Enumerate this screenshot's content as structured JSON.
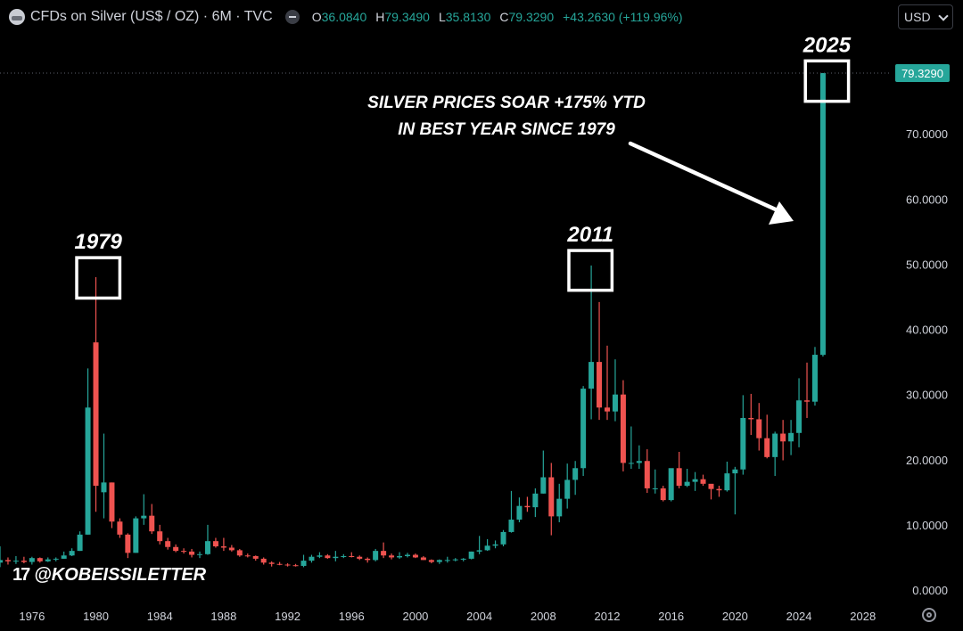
{
  "header": {
    "title": "CFDs on Silver (US$ / OZ) · 6M · TVC",
    "ohlc": [
      {
        "k": "O",
        "v": "36.0840"
      },
      {
        "k": "H",
        "v": "79.3490"
      },
      {
        "k": "L",
        "v": "35.8130"
      },
      {
        "k": "C",
        "v": "79.3290"
      }
    ],
    "change": "+43.2630 (+119.96%)"
  },
  "currency_select": "USD",
  "watermark": "@KOBEISSILETTER",
  "watermark_logo": "17",
  "colors": {
    "up": "#26a69a",
    "down": "#ef5350",
    "background": "#000000",
    "axis_text": "#d1d4dc",
    "price_tag": "#26a69a"
  },
  "chart_data": {
    "type": "candlestick",
    "title": "",
    "xlabel": "",
    "ylabel": "",
    "x_range": [
      1974.0,
      2029.8
    ],
    "ylim": [
      0,
      79.329
    ],
    "y_ticks": [
      0,
      10,
      20,
      30,
      40,
      50,
      60,
      70
    ],
    "y_tick_labels": [
      "0.0000",
      "10.0000",
      "20.0000",
      "30.0000",
      "40.0000",
      "50.0000",
      "60.0000",
      "70.0000"
    ],
    "x_ticks": [
      1976,
      1980,
      1984,
      1988,
      1992,
      1996,
      2000,
      2004,
      2008,
      2012,
      2016,
      2020,
      2024,
      2028
    ],
    "last_price_label": "79.3290",
    "last_price": 79.329,
    "candles": [
      {
        "t": 1974.0,
        "o": 4.2,
        "h": 6.7,
        "l": 3.5,
        "c": 4.6
      },
      {
        "t": 1974.5,
        "o": 4.6,
        "h": 5.0,
        "l": 3.9,
        "c": 4.4
      },
      {
        "t": 1975.0,
        "o": 4.4,
        "h": 5.2,
        "l": 4.0,
        "c": 4.5
      },
      {
        "t": 1975.5,
        "o": 4.5,
        "h": 5.1,
        "l": 4.1,
        "c": 4.3
      },
      {
        "t": 1976.0,
        "o": 4.3,
        "h": 5.1,
        "l": 3.9,
        "c": 4.9
      },
      {
        "t": 1976.5,
        "o": 4.9,
        "h": 5.0,
        "l": 4.2,
        "c": 4.4
      },
      {
        "t": 1977.0,
        "o": 4.4,
        "h": 5.0,
        "l": 4.3,
        "c": 4.7
      },
      {
        "t": 1977.5,
        "o": 4.7,
        "h": 5.0,
        "l": 4.4,
        "c": 4.8
      },
      {
        "t": 1978.0,
        "o": 4.8,
        "h": 5.9,
        "l": 4.8,
        "c": 5.3
      },
      {
        "t": 1978.5,
        "o": 5.3,
        "h": 6.4,
        "l": 5.2,
        "c": 6.0
      },
      {
        "t": 1979.0,
        "o": 6.0,
        "h": 9.0,
        "l": 6.0,
        "c": 8.5
      },
      {
        "t": 1979.5,
        "o": 8.5,
        "h": 34.0,
        "l": 8.5,
        "c": 28.0
      },
      {
        "t": 1980.0,
        "o": 38.0,
        "h": 48.0,
        "l": 12.0,
        "c": 16.0
      },
      {
        "t": 1980.5,
        "o": 15.0,
        "h": 24.0,
        "l": 11.0,
        "c": 16.5
      },
      {
        "t": 1981.0,
        "o": 16.5,
        "h": 16.5,
        "l": 9.5,
        "c": 10.5
      },
      {
        "t": 1981.5,
        "o": 10.5,
        "h": 11.0,
        "l": 8.0,
        "c": 8.5
      },
      {
        "t": 1982.0,
        "o": 8.5,
        "h": 8.7,
        "l": 4.9,
        "c": 5.7
      },
      {
        "t": 1982.5,
        "o": 5.7,
        "h": 11.3,
        "l": 5.7,
        "c": 11.0
      },
      {
        "t": 1983.0,
        "o": 11.0,
        "h": 14.7,
        "l": 10.0,
        "c": 11.4
      },
      {
        "t": 1983.5,
        "o": 11.4,
        "h": 13.2,
        "l": 8.6,
        "c": 9.0
      },
      {
        "t": 1984.0,
        "o": 9.0,
        "h": 10.0,
        "l": 7.0,
        "c": 7.5
      },
      {
        "t": 1984.5,
        "o": 7.5,
        "h": 8.0,
        "l": 6.2,
        "c": 6.6
      },
      {
        "t": 1985.0,
        "o": 6.6,
        "h": 7.0,
        "l": 5.8,
        "c": 6.0
      },
      {
        "t": 1985.5,
        "o": 6.0,
        "h": 6.4,
        "l": 5.6,
        "c": 5.9
      },
      {
        "t": 1986.0,
        "o": 5.9,
        "h": 6.3,
        "l": 5.0,
        "c": 5.4
      },
      {
        "t": 1986.5,
        "o": 5.4,
        "h": 5.9,
        "l": 4.9,
        "c": 5.5
      },
      {
        "t": 1987.0,
        "o": 5.5,
        "h": 10.0,
        "l": 5.4,
        "c": 7.5
      },
      {
        "t": 1987.5,
        "o": 7.5,
        "h": 8.0,
        "l": 6.5,
        "c": 6.7
      },
      {
        "t": 1988.0,
        "o": 6.7,
        "h": 8.0,
        "l": 6.0,
        "c": 6.5
      },
      {
        "t": 1988.5,
        "o": 6.5,
        "h": 6.9,
        "l": 5.9,
        "c": 6.1
      },
      {
        "t": 1989.0,
        "o": 6.1,
        "h": 6.3,
        "l": 5.1,
        "c": 5.3
      },
      {
        "t": 1989.5,
        "o": 5.3,
        "h": 5.6,
        "l": 5.0,
        "c": 5.2
      },
      {
        "t": 1990.0,
        "o": 5.2,
        "h": 5.3,
        "l": 4.5,
        "c": 4.8
      },
      {
        "t": 1990.5,
        "o": 4.8,
        "h": 5.0,
        "l": 3.9,
        "c": 4.2
      },
      {
        "t": 1991.0,
        "o": 4.2,
        "h": 4.4,
        "l": 3.6,
        "c": 4.0
      },
      {
        "t": 1991.5,
        "o": 4.0,
        "h": 4.3,
        "l": 3.8,
        "c": 3.9
      },
      {
        "t": 1992.0,
        "o": 3.9,
        "h": 4.1,
        "l": 3.6,
        "c": 3.8
      },
      {
        "t": 1992.5,
        "o": 3.8,
        "h": 4.0,
        "l": 3.6,
        "c": 3.7
      },
      {
        "t": 1993.0,
        "o": 3.7,
        "h": 5.4,
        "l": 3.5,
        "c": 4.5
      },
      {
        "t": 1993.5,
        "o": 4.5,
        "h": 5.4,
        "l": 4.2,
        "c": 5.1
      },
      {
        "t": 1994.0,
        "o": 5.1,
        "h": 5.8,
        "l": 4.9,
        "c": 5.3
      },
      {
        "t": 1994.5,
        "o": 5.3,
        "h": 5.5,
        "l": 4.8,
        "c": 4.9
      },
      {
        "t": 1995.0,
        "o": 4.9,
        "h": 6.0,
        "l": 4.4,
        "c": 5.1
      },
      {
        "t": 1995.5,
        "o": 5.1,
        "h": 5.5,
        "l": 4.9,
        "c": 5.2
      },
      {
        "t": 1996.0,
        "o": 5.2,
        "h": 5.8,
        "l": 5.0,
        "c": 5.1
      },
      {
        "t": 1996.5,
        "o": 5.1,
        "h": 5.3,
        "l": 4.6,
        "c": 4.8
      },
      {
        "t": 1997.0,
        "o": 4.8,
        "h": 5.0,
        "l": 4.2,
        "c": 4.6
      },
      {
        "t": 1997.5,
        "o": 4.6,
        "h": 6.3,
        "l": 4.4,
        "c": 6.0
      },
      {
        "t": 1998.0,
        "o": 6.0,
        "h": 7.3,
        "l": 4.9,
        "c": 5.3
      },
      {
        "t": 1998.5,
        "o": 5.3,
        "h": 5.6,
        "l": 4.7,
        "c": 5.0
      },
      {
        "t": 1999.0,
        "o": 5.0,
        "h": 5.8,
        "l": 4.8,
        "c": 5.2
      },
      {
        "t": 1999.5,
        "o": 5.2,
        "h": 5.7,
        "l": 5.0,
        "c": 5.4
      },
      {
        "t": 2000.0,
        "o": 5.4,
        "h": 5.6,
        "l": 4.9,
        "c": 5.0
      },
      {
        "t": 2000.5,
        "o": 5.0,
        "h": 5.2,
        "l": 4.6,
        "c": 4.6
      },
      {
        "t": 2001.0,
        "o": 4.6,
        "h": 4.7,
        "l": 4.1,
        "c": 4.3
      },
      {
        "t": 2001.5,
        "o": 4.3,
        "h": 4.7,
        "l": 4.0,
        "c": 4.6
      },
      {
        "t": 2002.0,
        "o": 4.6,
        "h": 5.1,
        "l": 4.2,
        "c": 4.6
      },
      {
        "t": 2002.5,
        "o": 4.6,
        "h": 4.9,
        "l": 4.4,
        "c": 4.7
      },
      {
        "t": 2003.0,
        "o": 4.7,
        "h": 4.9,
        "l": 4.4,
        "c": 4.8
      },
      {
        "t": 2003.5,
        "o": 4.8,
        "h": 5.9,
        "l": 4.7,
        "c": 5.9
      },
      {
        "t": 2004.0,
        "o": 5.9,
        "h": 8.3,
        "l": 5.5,
        "c": 6.1
      },
      {
        "t": 2004.5,
        "o": 6.1,
        "h": 7.8,
        "l": 6.0,
        "c": 6.8
      },
      {
        "t": 2005.0,
        "o": 6.8,
        "h": 7.6,
        "l": 6.4,
        "c": 7.0
      },
      {
        "t": 2005.5,
        "o": 7.0,
        "h": 9.2,
        "l": 6.7,
        "c": 8.9
      },
      {
        "t": 2006.0,
        "o": 8.9,
        "h": 15.2,
        "l": 8.8,
        "c": 10.8
      },
      {
        "t": 2006.5,
        "o": 10.8,
        "h": 14.2,
        "l": 10.4,
        "c": 12.9
      },
      {
        "t": 2007.0,
        "o": 12.9,
        "h": 14.3,
        "l": 12.0,
        "c": 12.7
      },
      {
        "t": 2007.5,
        "o": 12.7,
        "h": 15.6,
        "l": 11.2,
        "c": 14.8
      },
      {
        "t": 2008.0,
        "o": 14.8,
        "h": 21.4,
        "l": 14.8,
        "c": 17.3
      },
      {
        "t": 2008.5,
        "o": 17.3,
        "h": 19.5,
        "l": 8.4,
        "c": 11.3
      },
      {
        "t": 2009.0,
        "o": 11.3,
        "h": 16.3,
        "l": 10.4,
        "c": 14.0
      },
      {
        "t": 2009.5,
        "o": 14.0,
        "h": 19.4,
        "l": 12.5,
        "c": 16.9
      },
      {
        "t": 2010.0,
        "o": 16.9,
        "h": 19.8,
        "l": 14.6,
        "c": 18.7
      },
      {
        "t": 2010.5,
        "o": 18.7,
        "h": 31.3,
        "l": 17.5,
        "c": 30.9
      },
      {
        "t": 2011.0,
        "o": 30.9,
        "h": 49.8,
        "l": 26.2,
        "c": 35.0
      },
      {
        "t": 2011.5,
        "o": 35.0,
        "h": 44.2,
        "l": 26.1,
        "c": 28.0
      },
      {
        "t": 2012.0,
        "o": 28.0,
        "h": 37.5,
        "l": 26.1,
        "c": 27.4
      },
      {
        "t": 2012.5,
        "o": 27.4,
        "h": 35.4,
        "l": 25.9,
        "c": 30.0
      },
      {
        "t": 2013.0,
        "o": 30.0,
        "h": 32.2,
        "l": 18.2,
        "c": 19.5
      },
      {
        "t": 2013.5,
        "o": 19.5,
        "h": 25.1,
        "l": 18.6,
        "c": 19.5
      },
      {
        "t": 2014.0,
        "o": 19.5,
        "h": 22.2,
        "l": 18.6,
        "c": 19.8
      },
      {
        "t": 2014.5,
        "o": 19.8,
        "h": 21.6,
        "l": 14.9,
        "c": 15.6
      },
      {
        "t": 2015.0,
        "o": 15.6,
        "h": 18.5,
        "l": 14.8,
        "c": 15.6
      },
      {
        "t": 2015.5,
        "o": 15.6,
        "h": 16.0,
        "l": 13.6,
        "c": 13.8
      },
      {
        "t": 2016.0,
        "o": 13.8,
        "h": 18.5,
        "l": 13.6,
        "c": 18.7
      },
      {
        "t": 2016.5,
        "o": 18.7,
        "h": 21.2,
        "l": 15.6,
        "c": 16.0
      },
      {
        "t": 2017.0,
        "o": 16.0,
        "h": 18.6,
        "l": 15.8,
        "c": 16.6
      },
      {
        "t": 2017.5,
        "o": 16.6,
        "h": 18.1,
        "l": 15.2,
        "c": 17.0
      },
      {
        "t": 2018.0,
        "o": 17.0,
        "h": 17.7,
        "l": 16.0,
        "c": 16.3
      },
      {
        "t": 2018.5,
        "o": 16.3,
        "h": 16.1,
        "l": 13.9,
        "c": 15.5
      },
      {
        "t": 2019.0,
        "o": 15.5,
        "h": 16.0,
        "l": 14.3,
        "c": 15.3
      },
      {
        "t": 2019.5,
        "o": 15.3,
        "h": 19.7,
        "l": 15.1,
        "c": 17.9
      },
      {
        "t": 2020.0,
        "o": 17.9,
        "h": 18.9,
        "l": 11.6,
        "c": 18.5
      },
      {
        "t": 2020.5,
        "o": 18.5,
        "h": 29.9,
        "l": 17.7,
        "c": 26.4
      },
      {
        "t": 2021.0,
        "o": 26.4,
        "h": 30.1,
        "l": 23.8,
        "c": 26.2
      },
      {
        "t": 2021.5,
        "o": 26.2,
        "h": 28.7,
        "l": 21.4,
        "c": 23.3
      },
      {
        "t": 2022.0,
        "o": 23.3,
        "h": 26.9,
        "l": 20.2,
        "c": 20.4
      },
      {
        "t": 2022.5,
        "o": 20.4,
        "h": 24.3,
        "l": 17.5,
        "c": 24.0
      },
      {
        "t": 2023.0,
        "o": 24.0,
        "h": 26.1,
        "l": 19.9,
        "c": 22.8
      },
      {
        "t": 2023.5,
        "o": 22.8,
        "h": 26.1,
        "l": 20.7,
        "c": 24.1
      },
      {
        "t": 2024.0,
        "o": 24.1,
        "h": 32.5,
        "l": 21.9,
        "c": 29.1
      },
      {
        "t": 2024.5,
        "o": 29.1,
        "h": 34.9,
        "l": 26.4,
        "c": 28.9
      },
      {
        "t": 2025.0,
        "o": 28.9,
        "h": 37.3,
        "l": 28.3,
        "c": 36.1
      },
      {
        "t": 2025.5,
        "o": 36.084,
        "h": 79.349,
        "l": 35.813,
        "c": 79.329
      }
    ],
    "annotations": [
      {
        "label": "1979",
        "box_t0": 1978.8,
        "box_t1": 1981.5,
        "box_y0": 44.8,
        "box_y1": 51.0
      },
      {
        "label": "2011",
        "box_t0": 2009.6,
        "box_t1": 2012.3,
        "box_y0": 46.0,
        "box_y1": 52.1
      },
      {
        "label": "2025",
        "box_t0": 2024.4,
        "box_t1": 2027.1,
        "box_y0": 75.0,
        "box_y1": 81.2
      }
    ],
    "callout_lines": [
      "SILVER PRICES SOAR +175% YTD",
      "IN BEST YEAR SINCE 1979"
    ]
  }
}
